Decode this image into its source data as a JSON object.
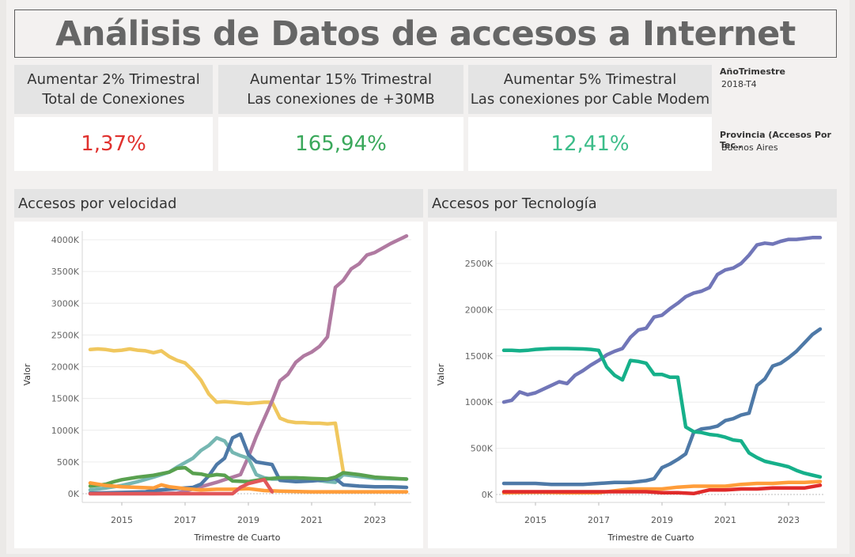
{
  "title": "Análisis de Datos de accesos a Internet",
  "kpis": [
    {
      "line1": "Aumentar 2% Trimestral",
      "line2": "Total de Conexiones",
      "value": "1,37%",
      "color": "#e0312e"
    },
    {
      "line1": "Aumentar 15% Trimestral",
      "line2": "Las conexiones de +30MB",
      "value": "165,94%",
      "color": "#3aa85b"
    },
    {
      "line1": "Aumentar 5% Trimestral",
      "line2": "Las conexiones por Cable Modem",
      "value": "12,41%",
      "color": "#3dbd8a"
    }
  ],
  "filters": {
    "year_label": "AñoTrimestre",
    "year_value": "2018-T4",
    "prov_label": "Provincia (Accesos Por Tec..",
    "prov_value": "Buenos Aires"
  },
  "chart_data": [
    {
      "type": "line",
      "title": "Accesos por velocidad",
      "xlabel": "Trimestre de Cuarto",
      "ylabel": "Valor",
      "xlim": [
        2014.0,
        2024.0
      ],
      "ylim": [
        0,
        4000
      ],
      "xticks": [
        "2015",
        "2017",
        "2019",
        "2021",
        "2023"
      ],
      "yticks": [
        "0K",
        "500K",
        "1000K",
        "1500K",
        "2000K",
        "2500K",
        "3000K",
        "3500K",
        "4000K"
      ],
      "grid": true,
      "series": [
        {
          "color": "#f0c75e",
          "x": [
            2014.0,
            2014.25,
            2014.5,
            2014.75,
            2015.0,
            2015.25,
            2015.5,
            2015.75,
            2016.0,
            2016.25,
            2016.5,
            2016.75,
            2017.0,
            2017.25,
            2017.5,
            2017.75,
            2018.0,
            2018.25,
            2018.5,
            2018.75,
            2019.0,
            2019.25,
            2019.5,
            2019.75,
            2020.0,
            2020.25,
            2020.5,
            2020.75,
            2021.0,
            2021.25,
            2021.5,
            2021.75,
            2022.0
          ],
          "y": [
            2270,
            2280,
            2270,
            2250,
            2260,
            2280,
            2260,
            2250,
            2220,
            2250,
            2160,
            2100,
            2060,
            1940,
            1790,
            1570,
            1440,
            1450,
            1440,
            1430,
            1420,
            1430,
            1440,
            1440,
            1190,
            1140,
            1120,
            1120,
            1110,
            1110,
            1100,
            1110,
            350
          ]
        },
        {
          "color": "#b07aa1",
          "x": [
            2014.0,
            2015.0,
            2016.0,
            2016.75,
            2017.0,
            2017.5,
            2018.0,
            2018.25,
            2018.5,
            2018.75,
            2019.0,
            2019.25,
            2019.5,
            2019.75,
            2020.0,
            2020.25,
            2020.5,
            2020.75,
            2021.0,
            2021.25,
            2021.5,
            2021.75,
            2022.0,
            2022.25,
            2022.5,
            2022.75,
            2023.0,
            2023.25,
            2023.5,
            2023.75,
            2024.0
          ],
          "y": [
            0,
            0,
            0,
            10,
            40,
            110,
            180,
            220,
            260,
            300,
            580,
            900,
            1180,
            1460,
            1780,
            1880,
            2070,
            2170,
            2230,
            2320,
            2470,
            3250,
            3360,
            3540,
            3620,
            3760,
            3800,
            3870,
            3940,
            4000,
            4060
          ]
        },
        {
          "color": "#76b7b2",
          "x": [
            2014.0,
            2014.5,
            2015.0,
            2015.5,
            2016.0,
            2016.5,
            2016.75,
            2017.0,
            2017.25,
            2017.5,
            2017.75,
            2018.0,
            2018.25,
            2018.5,
            2018.75,
            2019.0,
            2019.25,
            2019.5,
            2019.75,
            2020.0,
            2020.5,
            2021.0,
            2021.5,
            2021.75,
            2022.0,
            2022.5,
            2023.0,
            2024.0
          ],
          "y": [
            60,
            90,
            130,
            190,
            260,
            340,
            420,
            490,
            560,
            680,
            760,
            880,
            830,
            650,
            600,
            560,
            300,
            250,
            230,
            230,
            230,
            220,
            190,
            180,
            300,
            270,
            240,
            230
          ]
        },
        {
          "color": "#4e79a7",
          "x": [
            2014.0,
            2015.0,
            2015.75,
            2016.0,
            2016.5,
            2017.0,
            2017.25,
            2017.5,
            2017.75,
            2018.0,
            2018.25,
            2018.5,
            2018.75,
            2019.0,
            2019.25,
            2019.5,
            2019.75,
            2020.0,
            2020.5,
            2021.0,
            2021.5,
            2021.75,
            2022.0,
            2022.5,
            2023.0,
            2023.5,
            2024.0
          ],
          "y": [
            10,
            20,
            30,
            50,
            70,
            90,
            100,
            150,
            280,
            460,
            560,
            880,
            940,
            620,
            500,
            480,
            460,
            210,
            190,
            200,
            220,
            240,
            140,
            120,
            110,
            110,
            100
          ]
        },
        {
          "color": "#59a14f",
          "x": [
            2014.0,
            2014.5,
            2014.75,
            2015.0,
            2015.5,
            2016.0,
            2016.5,
            2016.75,
            2017.0,
            2017.25,
            2017.5,
            2017.75,
            2018.0,
            2018.25,
            2018.5,
            2019.0,
            2019.5,
            2020.0,
            2020.5,
            2021.0,
            2021.5,
            2021.75,
            2022.0,
            2022.5,
            2023.0,
            2024.0
          ],
          "y": [
            120,
            150,
            190,
            220,
            260,
            290,
            340,
            400,
            410,
            320,
            310,
            280,
            300,
            290,
            200,
            190,
            230,
            250,
            250,
            240,
            230,
            260,
            330,
            300,
            260,
            230
          ]
        },
        {
          "color": "#ff9d3a",
          "x": [
            2014.0,
            2014.5,
            2015.0,
            2015.5,
            2016.0,
            2016.25,
            2016.5,
            2017.0,
            2017.5,
            2018.0,
            2018.5,
            2019.0,
            2019.5,
            2020.0,
            2021.0,
            2022.0,
            2023.0,
            2024.0
          ],
          "y": [
            170,
            130,
            110,
            100,
            90,
            140,
            110,
            80,
            60,
            70,
            70,
            80,
            50,
            40,
            30,
            30,
            30,
            30
          ]
        },
        {
          "color": "#e15759",
          "x": [
            2014.0,
            2015.0,
            2016.0,
            2017.0,
            2018.0,
            2018.5,
            2018.75,
            2019.0,
            2019.5,
            2019.75
          ],
          "y": [
            0,
            0,
            0,
            0,
            0,
            0,
            100,
            160,
            220,
            30
          ]
        }
      ]
    },
    {
      "type": "line",
      "title": "Accesos por Tecnología",
      "xlabel": "Trimestre de Cuarto",
      "ylabel": "Valor",
      "xlim": [
        2014.0,
        2024.0
      ],
      "ylim": [
        0,
        2800
      ],
      "xticks": [
        "2015",
        "2017",
        "2019",
        "2021",
        "2023"
      ],
      "yticks": [
        "0K",
        "500K",
        "1000K",
        "1500K",
        "2000K",
        "2500K"
      ],
      "grid": true,
      "series": [
        {
          "color": "#7176b8",
          "x": [
            2014.0,
            2014.25,
            2014.5,
            2014.75,
            2015.0,
            2015.25,
            2015.5,
            2015.75,
            2016.0,
            2016.25,
            2016.5,
            2016.75,
            2017.0,
            2017.25,
            2017.5,
            2017.75,
            2018.0,
            2018.25,
            2018.5,
            2018.75,
            2019.0,
            2019.25,
            2019.5,
            2019.75,
            2020.0,
            2020.25,
            2020.5,
            2020.75,
            2021.0,
            2021.25,
            2021.5,
            2021.75,
            2022.0,
            2022.25,
            2022.5,
            2022.75,
            2023.0,
            2023.25,
            2023.5,
            2023.75,
            2024.0
          ],
          "y": [
            1000,
            1020,
            1110,
            1080,
            1100,
            1140,
            1180,
            1220,
            1200,
            1290,
            1340,
            1400,
            1450,
            1510,
            1550,
            1580,
            1700,
            1780,
            1800,
            1920,
            1940,
            2010,
            2070,
            2140,
            2180,
            2200,
            2240,
            2380,
            2430,
            2450,
            2500,
            2590,
            2700,
            2720,
            2710,
            2740,
            2760,
            2760,
            2770,
            2780,
            2780
          ]
        },
        {
          "color": "#4e79a7",
          "x": [
            2014.0,
            2014.5,
            2015.0,
            2015.5,
            2016.0,
            2016.5,
            2017.0,
            2017.5,
            2018.0,
            2018.5,
            2018.75,
            2019.0,
            2019.25,
            2019.5,
            2019.75,
            2020.0,
            2020.25,
            2020.5,
            2020.75,
            2021.0,
            2021.25,
            2021.5,
            2021.75,
            2022.0,
            2022.25,
            2022.5,
            2022.75,
            2023.0,
            2023.25,
            2023.5,
            2023.75,
            2024.0
          ],
          "y": [
            120,
            120,
            120,
            110,
            110,
            110,
            120,
            130,
            130,
            150,
            170,
            290,
            330,
            380,
            440,
            670,
            710,
            720,
            740,
            800,
            820,
            860,
            880,
            1180,
            1250,
            1390,
            1420,
            1480,
            1550,
            1640,
            1730,
            1790
          ]
        },
        {
          "color": "#16b08a",
          "x": [
            2014.0,
            2014.25,
            2014.5,
            2014.75,
            2015.0,
            2015.5,
            2016.0,
            2016.5,
            2016.75,
            2017.0,
            2017.25,
            2017.5,
            2017.75,
            2018.0,
            2018.25,
            2018.5,
            2018.75,
            2019.0,
            2019.25,
            2019.5,
            2019.75,
            2020.0,
            2020.25,
            2020.5,
            2020.75,
            2021.0,
            2021.25,
            2021.5,
            2021.75,
            2022.0,
            2022.25,
            2022.5,
            2022.75,
            2023.0,
            2023.25,
            2023.5,
            2023.75,
            2024.0
          ],
          "y": [
            1560,
            1560,
            1555,
            1560,
            1570,
            1580,
            1580,
            1575,
            1570,
            1560,
            1380,
            1290,
            1240,
            1450,
            1440,
            1420,
            1300,
            1300,
            1270,
            1270,
            730,
            680,
            670,
            650,
            640,
            620,
            590,
            580,
            450,
            400,
            360,
            340,
            320,
            300,
            260,
            230,
            210,
            190
          ]
        },
        {
          "color": "#ff9d3a",
          "x": [
            2014.0,
            2015.0,
            2016.0,
            2017.0,
            2017.5,
            2018.0,
            2018.5,
            2019.0,
            2019.5,
            2020.0,
            2020.5,
            2021.0,
            2021.5,
            2022.0,
            2022.5,
            2023.0,
            2023.5,
            2024.0
          ],
          "y": [
            20,
            25,
            20,
            20,
            40,
            60,
            60,
            60,
            80,
            90,
            90,
            90,
            110,
            120,
            120,
            130,
            130,
            140
          ]
        },
        {
          "color": "#e02a2a",
          "x": [
            2014.0,
            2015.0,
            2016.0,
            2017.0,
            2017.5,
            2018.0,
            2018.5,
            2019.0,
            2019.5,
            2020.0,
            2020.5,
            2021.0,
            2021.5,
            2022.0,
            2022.5,
            2023.0,
            2023.5,
            2024.0
          ],
          "y": [
            30,
            30,
            30,
            30,
            30,
            30,
            30,
            20,
            20,
            10,
            50,
            50,
            60,
            60,
            70,
            70,
            70,
            100
          ]
        }
      ]
    }
  ]
}
